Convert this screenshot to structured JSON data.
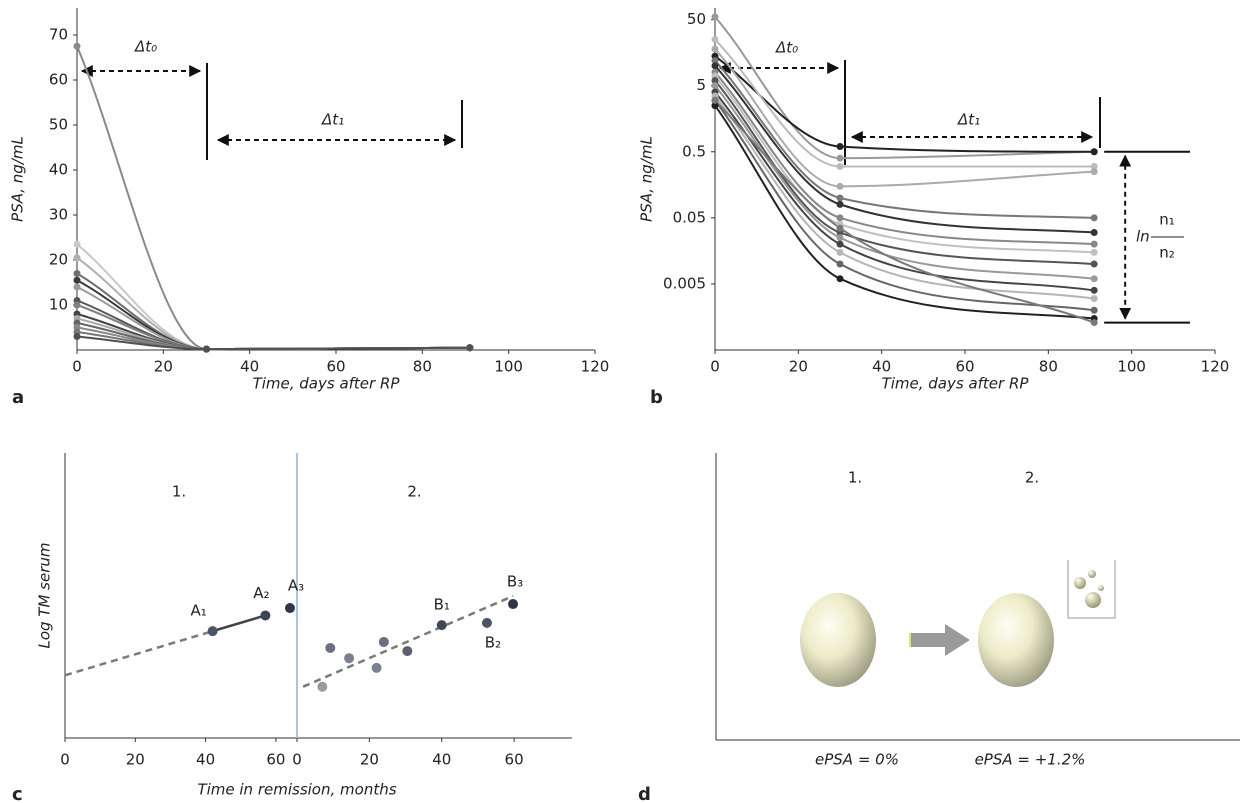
{
  "chart_data": [
    {
      "type": "line",
      "panel_label": "a",
      "xlabel": "Time, days after RP",
      "ylabel": "PSA, ng/mL",
      "annotations": [
        "Δt₀",
        "Δt₁"
      ],
      "x": [
        0,
        30,
        91
      ],
      "xlim": [
        0,
        120
      ],
      "xticks": [
        0,
        20,
        40,
        60,
        80,
        100,
        120
      ],
      "ylim": [
        0,
        76
      ],
      "yticks": [
        10,
        20,
        30,
        40,
        50,
        60,
        70
      ],
      "log": false,
      "series": [
        {
          "color": "#8a8a8a",
          "values": [
            67.5,
            0.2,
            0.5
          ]
        },
        {
          "color": "#c8c8c8",
          "values": [
            23.5,
            0.2,
            0.5
          ]
        },
        {
          "color": "#b0b0b0",
          "values": [
            20.5,
            0.2,
            0.5
          ]
        },
        {
          "color": "#6e6e6e",
          "values": [
            17,
            0.2,
            0.5
          ]
        },
        {
          "color": "#3a3a3a",
          "values": [
            15.5,
            0.2,
            0.5
          ]
        },
        {
          "color": "#999999",
          "values": [
            14,
            0.2,
            0.5
          ]
        },
        {
          "color": "#555555",
          "values": [
            11,
            0.2,
            0.5
          ]
        },
        {
          "color": "#808080",
          "values": [
            10,
            0.2,
            0.5
          ]
        },
        {
          "color": "#444444",
          "values": [
            8,
            0.2,
            0.5
          ]
        },
        {
          "color": "#aaaaaa",
          "values": [
            7,
            0.2,
            0.5
          ]
        },
        {
          "color": "#666666",
          "values": [
            6,
            0.2,
            0.5
          ]
        },
        {
          "color": "#888888",
          "values": [
            5,
            0.2,
            0.5
          ]
        },
        {
          "color": "#777777",
          "values": [
            4,
            0.2,
            0.5
          ]
        },
        {
          "color": "#505050",
          "values": [
            3,
            0.2,
            0.5
          ]
        }
      ]
    },
    {
      "type": "line",
      "panel_label": "b",
      "xlabel": "Time, days after RP",
      "ylabel": "PSA, ng/mL",
      "annotations": [
        "Δt₀",
        "Δt₁",
        "ln",
        "n₁",
        "n₂"
      ],
      "x": [
        0,
        30,
        91
      ],
      "xlim": [
        0,
        120
      ],
      "xticks": [
        0,
        20,
        40,
        60,
        80,
        100,
        120
      ],
      "ylim": [
        0.0005,
        75
      ],
      "yticks": [
        0.005,
        0.05,
        0.5,
        5,
        50
      ],
      "log": true,
      "series": [
        {
          "color": "#999999",
          "values": [
            55,
            0.4,
            0.5
          ]
        },
        {
          "color": "#222222",
          "values": [
            14,
            0.6,
            0.5
          ]
        },
        {
          "color": "#bbbbbb",
          "values": [
            25,
            0.3,
            0.3
          ]
        },
        {
          "color": "#aaaaaa",
          "values": [
            18,
            0.15,
            0.25
          ]
        },
        {
          "color": "#777777",
          "values": [
            12,
            0.1,
            0.05
          ]
        },
        {
          "color": "#333333",
          "values": [
            10,
            0.08,
            0.03
          ]
        },
        {
          "color": "#888888",
          "values": [
            8,
            0.05,
            0.02
          ]
        },
        {
          "color": "#c0c0c0",
          "values": [
            7,
            0.04,
            0.015
          ]
        },
        {
          "color": "#555555",
          "values": [
            6,
            0.03,
            0.01
          ]
        },
        {
          "color": "#999999",
          "values": [
            5,
            0.025,
            0.006
          ]
        },
        {
          "color": "#444444",
          "values": [
            4,
            0.02,
            0.004
          ]
        },
        {
          "color": "#b5b5b5",
          "values": [
            3.5,
            0.015,
            0.003
          ]
        },
        {
          "color": "#666666",
          "values": [
            3,
            0.01,
            0.002
          ]
        },
        {
          "color": "#222222",
          "values": [
            2.5,
            0.006,
            0.0015
          ]
        },
        {
          "color": "#7a7a7a",
          "values": [
            3,
            0.035,
            0.0013
          ]
        }
      ]
    },
    {
      "type": "scatter",
      "panel_label": "c",
      "xlabel": "Time in remission, months",
      "ylabel": "Log TM serum",
      "ylim": [
        0,
        100
      ],
      "panels": [
        {
          "label": "1.",
          "xlim": [
            0,
            66
          ],
          "xticks": [
            0,
            20,
            40,
            60
          ],
          "x": [
            42,
            57,
            64
          ],
          "y": [
            37.5,
            43,
            45.6
          ],
          "point_labels": [
            "A₁",
            "A₂",
            "A₃"
          ],
          "point_colors": [
            "#4a5566",
            "#3a4556",
            "#2e3848"
          ],
          "trend_dashed": {
            "x": [
              0,
              42
            ],
            "y": [
              22,
              37.5
            ]
          },
          "trend_solid": {
            "x": [
              42,
              57
            ],
            "y": [
              37.5,
              43
            ]
          }
        },
        {
          "label": "2.",
          "xlim": [
            0,
            76
          ],
          "xticks": [
            0,
            20,
            40,
            60
          ],
          "x": [
            7,
            9.2,
            14.4,
            22,
            24,
            30.5,
            40,
            52.5,
            59.7
          ],
          "y": [
            18,
            31.6,
            28,
            24.6,
            33.7,
            30.5,
            39.6,
            40.4,
            47
          ],
          "point_labels": [
            null,
            null,
            null,
            null,
            null,
            null,
            "B₁",
            "B₂",
            "B₃"
          ],
          "point_colors": [
            "#9a9a9a",
            "#6a7080",
            "#7a8090",
            "#7a8090",
            "#6a7080",
            "#5a6272",
            "#3e4858",
            "#4a5566",
            "#2e3848"
          ],
          "trend_dashed": {
            "x": [
              1.7,
              59.7
            ],
            "y": [
              18,
              49.8
            ]
          }
        }
      ]
    },
    {
      "type": "diagram",
      "panel_label": "d",
      "stages": [
        "1.",
        "2."
      ],
      "captions": [
        "ePSA = 0%",
        "ePSA = +1.2%"
      ]
    }
  ]
}
